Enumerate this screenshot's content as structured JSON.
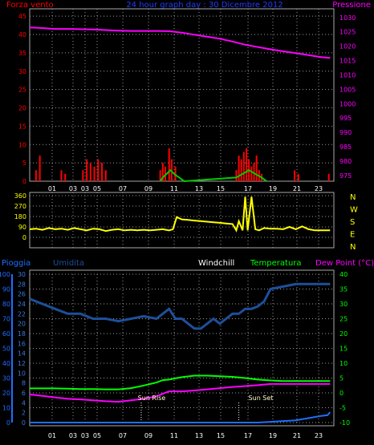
{
  "header": {
    "left": "Forza vento",
    "center": "24 hour graph day : 30 Dicembre 2012",
    "right": "Pressione"
  },
  "colors": {
    "wind": "#ff0000",
    "gust": "#00cc00",
    "pressure": "#ff00ff",
    "direction": "#ffff00",
    "rain": "#1e6fff",
    "humidity": "#1e4f9a",
    "temperature": "#00ff00",
    "dewpoint": "#ff00ff",
    "frame": "#aaaaaa"
  },
  "chart_data": [
    {
      "id": "wind_pressure",
      "type": "bar",
      "title": "24 hour graph day : 30 Dicembre 2012",
      "ylabel_left": "Forza vento",
      "ylabel_right": "Pressione",
      "ylim_left": [
        0,
        47
      ],
      "ylim_right": [
        973,
        1033
      ],
      "yticks_left": [
        "0",
        "5",
        "10",
        "15",
        "20",
        "25",
        "30",
        "35",
        "40",
        "45"
      ],
      "yticks_right": [
        "975",
        "980",
        "985",
        "990",
        "995",
        "1000",
        "1005",
        "1010",
        "1015",
        "1020",
        "1025",
        "1030"
      ],
      "xticks": [
        "01",
        "03",
        "03",
        "05",
        "07",
        "09",
        "11",
        "13",
        "15",
        "17",
        "19",
        "21",
        "23"
      ],
      "xlim": [
        0,
        24
      ],
      "series": [
        {
          "name": "Pressione",
          "kind": "line",
          "x": [
            0,
            1,
            2,
            3,
            4,
            5,
            6,
            7,
            8,
            9,
            10,
            11,
            12,
            13,
            14,
            15,
            16,
            17,
            18,
            19,
            20,
            21,
            22,
            23,
            23.7
          ],
          "values": [
            1026.5,
            1026.3,
            1026.0,
            1026.0,
            1025.9,
            1025.8,
            1025.6,
            1025.4,
            1025.3,
            1025.3,
            1025.3,
            1025.2,
            1024.7,
            1024.0,
            1023.3,
            1022.6,
            1021.6,
            1020.5,
            1019.7,
            1018.9,
            1018.2,
            1017.6,
            1016.9,
            1016.2,
            1015.9
          ]
        },
        {
          "name": "Forza vento",
          "kind": "bars",
          "x": [
            0.5,
            0.8,
            2.5,
            2.8,
            4.2,
            4.5,
            4.8,
            5.1,
            5.4,
            5.7,
            6.0,
            10.3,
            10.5,
            10.7,
            11.0,
            11.2,
            11.5,
            16.3,
            16.5,
            16.7,
            16.9,
            17.1,
            17.3,
            17.5,
            17.7,
            17.9,
            18.1,
            18.3,
            20.9,
            21.2,
            23.6
          ],
          "values": [
            3,
            7,
            3,
            2,
            3,
            6,
            5,
            4,
            6,
            5,
            3,
            3,
            5,
            4,
            9,
            6,
            4,
            3,
            7,
            6,
            8,
            9,
            6,
            4,
            5,
            7,
            3,
            2,
            3,
            2,
            2
          ]
        },
        {
          "name": "Raffica",
          "kind": "line",
          "x": [
            10.3,
            10.5,
            10.8,
            11.1,
            11.4,
            11.8,
            12.2,
            16.3,
            16.8,
            17.3,
            17.8,
            18.3,
            18.7
          ],
          "values": [
            0,
            1,
            2,
            3,
            2,
            1,
            0,
            1,
            2,
            3,
            2,
            1,
            0
          ]
        }
      ]
    },
    {
      "id": "wind_direction",
      "type": "line",
      "yticks": [
        "0",
        "90",
        "180",
        "270",
        "360"
      ],
      "ylim": [
        0,
        360
      ],
      "compass_labels": [
        "N",
        "W",
        "S",
        "E",
        "N"
      ],
      "xlim": [
        0,
        24
      ],
      "series": [
        {
          "name": "Direzione",
          "x": [
            0,
            0.5,
            1,
            1.5,
            2,
            2.5,
            3,
            3.5,
            4,
            4.5,
            5,
            5.5,
            6,
            6.5,
            7,
            7.5,
            8,
            8.5,
            9,
            9.5,
            10,
            10.5,
            11,
            11.3,
            11.6,
            12,
            12.5,
            13,
            13.5,
            14,
            14.5,
            15,
            15.5,
            16,
            16.3,
            16.5,
            16.8,
            17,
            17.2,
            17.5,
            17.8,
            18.1,
            18.5,
            19,
            19.5,
            20,
            20.5,
            21,
            21.5,
            22,
            22.5,
            23,
            23.5,
            23.7
          ],
          "values": [
            70,
            75,
            65,
            80,
            70,
            75,
            65,
            80,
            70,
            60,
            75,
            70,
            55,
            65,
            70,
            60,
            65,
            60,
            65,
            60,
            65,
            70,
            60,
            70,
            175,
            155,
            150,
            145,
            140,
            135,
            130,
            125,
            120,
            115,
            60,
            140,
            60,
            350,
            60,
            350,
            70,
            60,
            80,
            75,
            75,
            70,
            90,
            70,
            95,
            70,
            60,
            60,
            60,
            60
          ]
        }
      ]
    },
    {
      "id": "temp_humidity",
      "type": "line",
      "legend": [
        "Pioggia",
        "Umidita",
        "Windchill",
        "Temperatura",
        "Dew Point (°C)"
      ],
      "yticks_rain": [
        "0",
        "10",
        "20",
        "30",
        "40",
        "50",
        "60",
        "70",
        "80",
        "90",
        "100"
      ],
      "yticks_humidity": [
        "0",
        "2",
        "4",
        "6",
        "8",
        "10",
        "12",
        "14",
        "16",
        "18",
        "20",
        "22",
        "24",
        "26",
        "28",
        "30"
      ],
      "yticks_temp": [
        "-10",
        "-5",
        "0",
        "5",
        "10",
        "15",
        "20",
        "25",
        "30",
        "35",
        "40"
      ],
      "ylim_temp": [
        -10,
        40
      ],
      "xlim": [
        0,
        24
      ],
      "xticks": [
        "01",
        "03",
        "03",
        "05",
        "07",
        "09",
        "11",
        "13",
        "15",
        "17",
        "19",
        "21",
        "23"
      ],
      "annotations": [
        {
          "text": "Sun Rise",
          "x": 8.8
        },
        {
          "text": "Sun Set",
          "x": 16.5
        }
      ],
      "series": [
        {
          "name": "Umidita",
          "y_unit": "humidity",
          "x": [
            0,
            1,
            2,
            3,
            4,
            5,
            6,
            7,
            8,
            9,
            10,
            10.5,
            11,
            11.5,
            12,
            12.5,
            13,
            13.5,
            14,
            14.5,
            15,
            15.5,
            16,
            16.5,
            17,
            17.5,
            18,
            18.5,
            19,
            20,
            21,
            22,
            23,
            23.7
          ],
          "values": [
            25,
            24,
            23,
            22,
            22,
            21,
            21,
            20.5,
            21,
            21.5,
            21,
            22,
            23,
            21,
            21,
            20,
            19,
            19,
            20,
            21,
            20,
            21,
            22,
            22,
            23,
            23,
            23.5,
            24.5,
            27,
            27.5,
            28,
            28,
            28,
            28
          ]
        },
        {
          "name": "Temperatura",
          "y_unit": "temp",
          "x": [
            0,
            1,
            2,
            3,
            4,
            5,
            6,
            7,
            8,
            9,
            10,
            10.5,
            11,
            12,
            13,
            14,
            15,
            16,
            17,
            18,
            19,
            20,
            21,
            22,
            23,
            23.7
          ],
          "values": [
            1.5,
            1.5,
            1.5,
            1.4,
            1.3,
            1.3,
            1.2,
            1.2,
            1.6,
            2.5,
            3.5,
            4.3,
            4.5,
            5.3,
            5.8,
            5.8,
            5.6,
            5.4,
            5.0,
            4.5,
            4.2,
            4.0,
            4.0,
            4.0,
            4.0,
            4.0
          ]
        },
        {
          "name": "Dew Point (°C)",
          "y_unit": "temp",
          "x": [
            0,
            1,
            2,
            3,
            4,
            5,
            6,
            7,
            8,
            9,
            10,
            10.5,
            11,
            12,
            13,
            14,
            15,
            16,
            17,
            18,
            19,
            20,
            21,
            22,
            23,
            23.7
          ],
          "values": [
            -0.5,
            -1.0,
            -1.5,
            -2.0,
            -2.2,
            -2.5,
            -2.8,
            -3.0,
            -2.5,
            -2.0,
            -1.2,
            -0.3,
            0.5,
            0.5,
            0.8,
            1.2,
            1.6,
            2.0,
            2.3,
            2.6,
            3.0,
            3.0,
            3.0,
            3.0,
            3.0,
            3.0
          ]
        },
        {
          "name": "Pioggia",
          "y_unit": "rain",
          "x": [
            0,
            18,
            19,
            20,
            21,
            22,
            23,
            23.5,
            23.7
          ],
          "values": [
            0,
            0,
            0.5,
            1,
            1.5,
            3,
            4.5,
            5,
            7
          ]
        }
      ]
    }
  ]
}
